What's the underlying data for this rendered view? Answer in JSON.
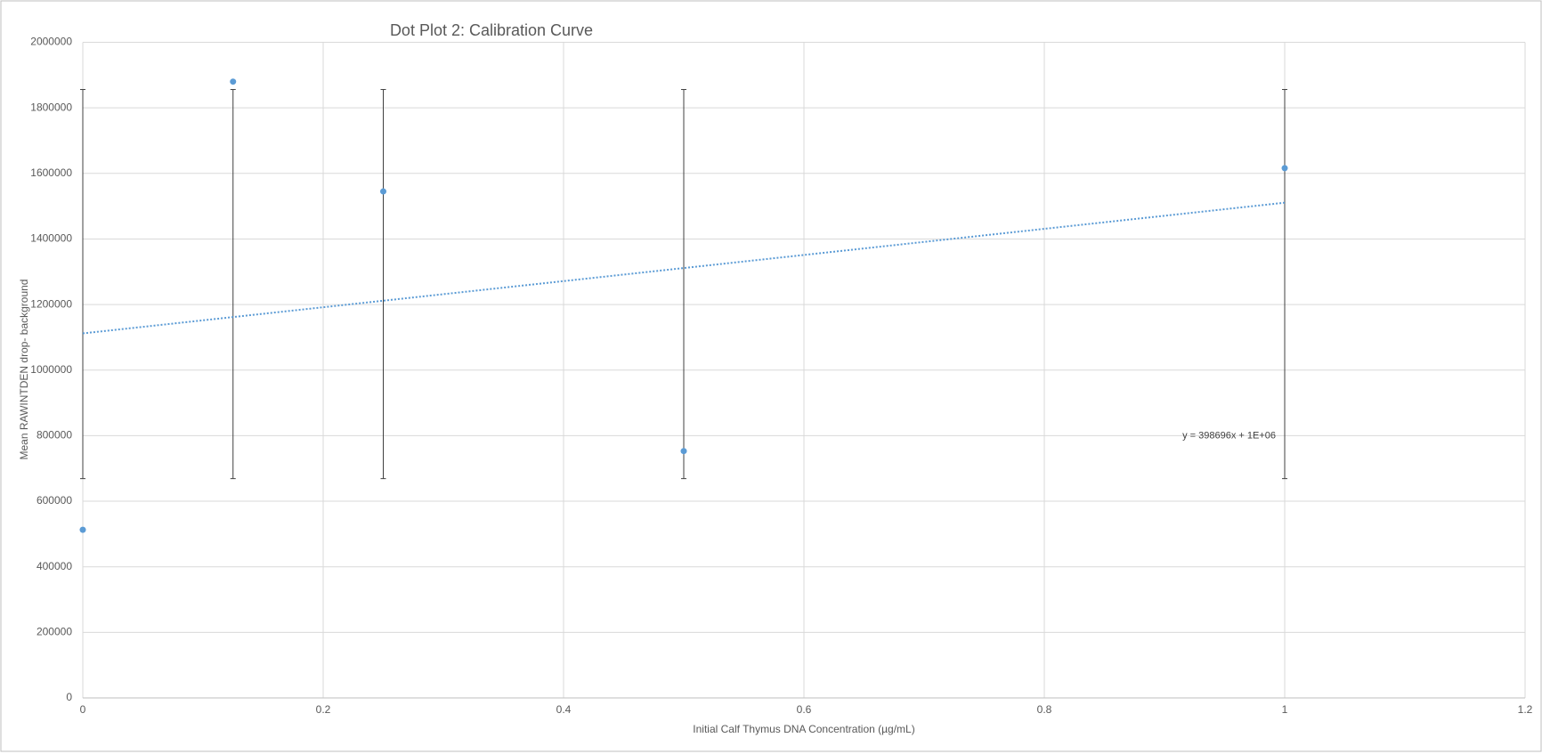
{
  "chart_data": {
    "type": "scatter",
    "title": "Dot Plot 2: Calibration Curve",
    "x_label": "Initial Calf Thymus DNA Concentration (µg/mL)",
    "y_label": "Mean RAWINTDEN drop- background",
    "series": [
      {
        "name": "Mean RAWINTDEN",
        "color": "#5b9bd5",
        "x": [
          0,
          0.125,
          0.25,
          0.5,
          1
        ],
        "values": [
          513000,
          1880000,
          1545000,
          753000,
          1616000
        ],
        "error_high": [
          1856000,
          1856000,
          1856000,
          1856000,
          1856000
        ],
        "error_low": [
          669000,
          669000,
          669000,
          669000,
          669000
        ]
      }
    ],
    "trendline": {
      "slope": 398696,
      "intercept": 1112000,
      "x_range": [
        0,
        1
      ],
      "color": "#5b9bd5",
      "label": "y = 398696x + 1E+06"
    },
    "xlim": [
      0,
      1.2
    ],
    "xticks": [
      0,
      0.2,
      0.4,
      0.6,
      0.8,
      1,
      1.2
    ],
    "ylim": [
      0,
      2000000
    ],
    "yticks": [
      0,
      200000,
      400000,
      600000,
      800000,
      1000000,
      1200000,
      1400000,
      1600000,
      1800000,
      2000000
    ],
    "grid": true
  }
}
